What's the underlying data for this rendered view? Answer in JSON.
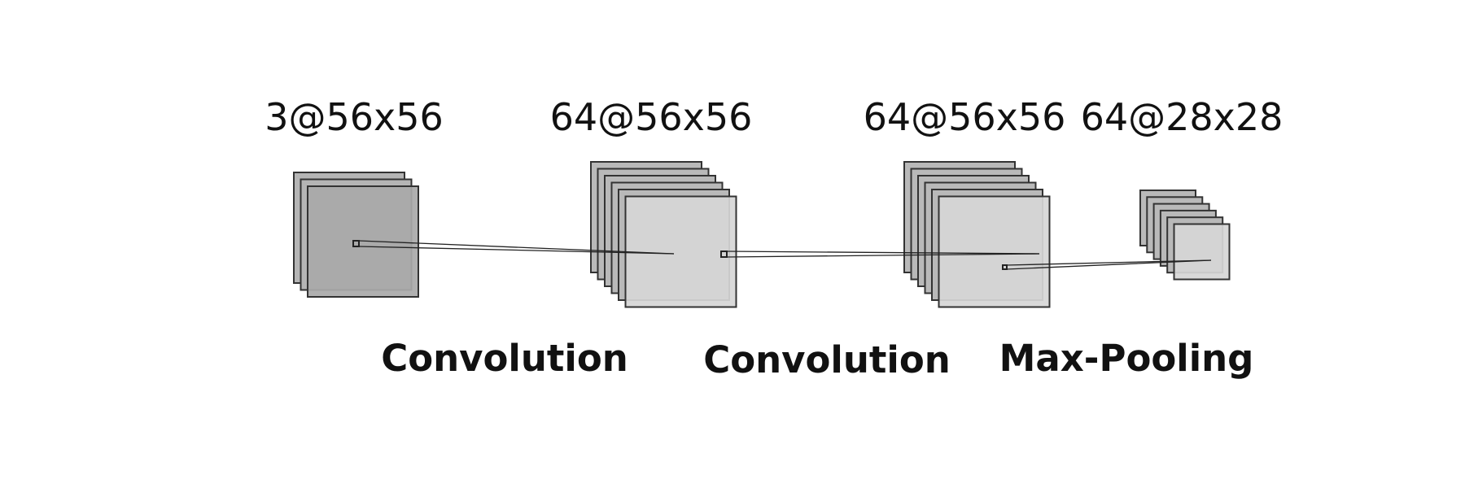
{
  "diagram": {
    "layers": [
      {
        "label": "3@56x56",
        "channels_drawn": 3,
        "front_fill": "#a9a9a9",
        "back_fill": "#b5b5b5",
        "edge": "#333333"
      },
      {
        "label": "64@56x56",
        "channels_drawn": 6,
        "front_fill": "#d6d6d6",
        "back_fill": "#b9b9b9",
        "edge": "#333333"
      },
      {
        "label": "64@56x56",
        "channels_drawn": 6,
        "front_fill": "#d6d6d6",
        "back_fill": "#b9b9b9",
        "edge": "#333333"
      },
      {
        "label": "64@28x28",
        "channels_drawn": 6,
        "front_fill": "#d6d6d6",
        "back_fill": "#b9b9b9",
        "edge": "#333333"
      }
    ],
    "operations": [
      {
        "label": "Convolution"
      },
      {
        "label": "Convolution"
      },
      {
        "label": "Max-Pooling"
      }
    ],
    "colors": {
      "text": "#111111",
      "connector": "#222222",
      "background": "#ffffff"
    }
  }
}
